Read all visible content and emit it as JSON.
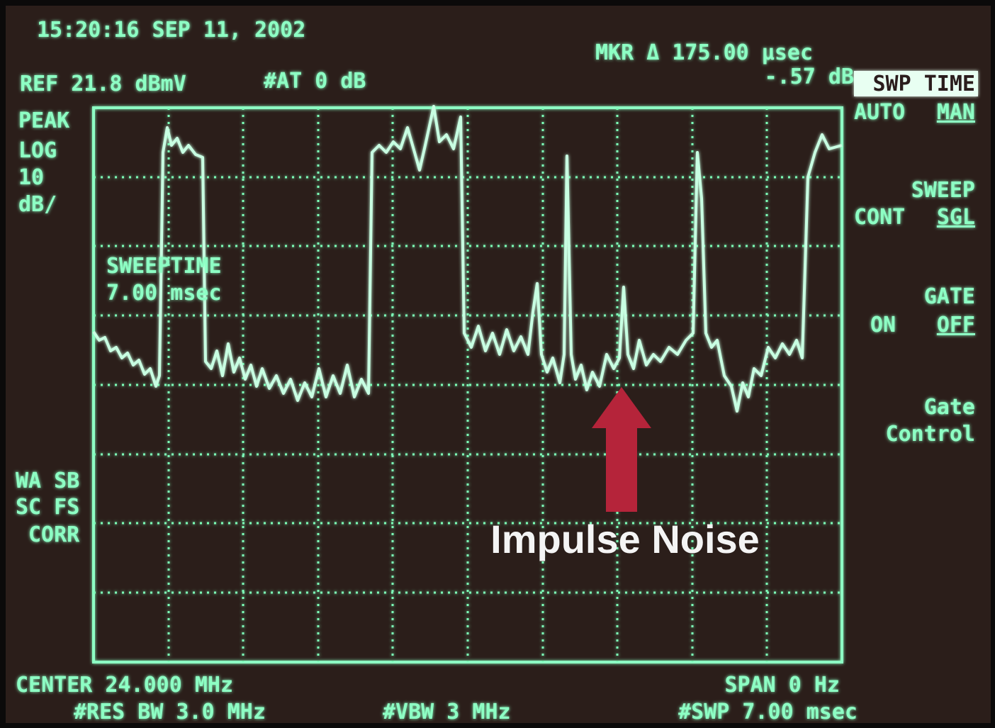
{
  "header": {
    "timestamp": "15:20:16 SEP 11, 2002",
    "reference": "REF 21.8 dBmV",
    "attenuation": "#AT 0 dB",
    "marker": "MKR Δ 175.00 μsec",
    "marker_level": "-.57 dB"
  },
  "left_panel": {
    "detector": "PEAK",
    "scale": [
      "LOG",
      "10",
      "dB/"
    ],
    "sweep_label": "SWEEPTIME",
    "sweep_value": "7.00 msec",
    "status": [
      "WA SB",
      "SC FS",
      "CORR"
    ]
  },
  "softkeys": [
    {
      "title": "SWP TIME",
      "options": [
        "AUTO",
        "MAN"
      ]
    },
    {
      "title": "SWEEP",
      "options": [
        "CONT",
        "SGL"
      ]
    },
    {
      "title": "GATE",
      "options": [
        "ON",
        "OFF"
      ]
    },
    {
      "lines": [
        "Gate",
        "Control"
      ]
    }
  ],
  "footer": {
    "center": "CENTER 24.000 MHz",
    "span": "SPAN 0 Hz",
    "res_bw": "#RES BW 3.0 MHz",
    "vbw": "#VBW 3 MHz",
    "sweep": "#SWP 7.00 msec"
  },
  "annotation": "Impulse Noise"
}
